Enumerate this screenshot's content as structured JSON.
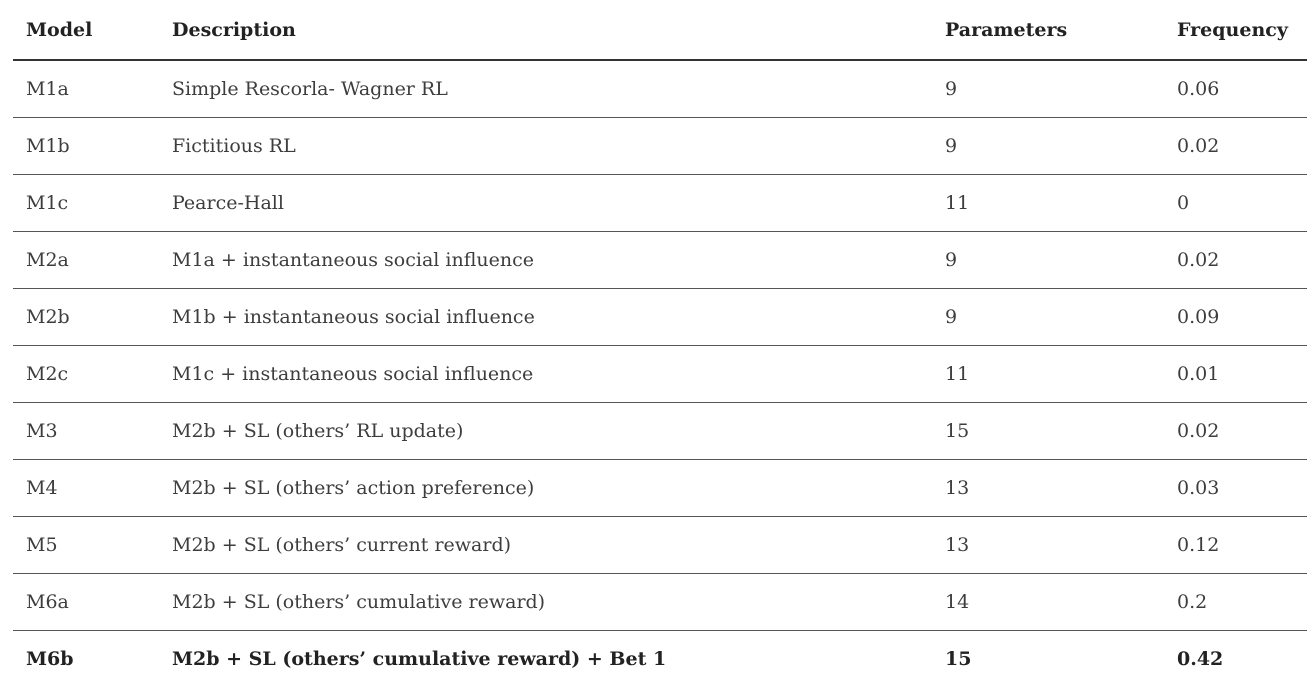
{
  "table": {
    "headers": {
      "model": "Model",
      "description": "Description",
      "parameters": "Parameters",
      "frequency": "Frequency"
    },
    "rows": [
      {
        "model": "M1a",
        "description": "Simple Rescorla- Wagner RL",
        "parameters": "9",
        "frequency": "0.06"
      },
      {
        "model": "M1b",
        "description": "Fictitious RL",
        "parameters": "9",
        "frequency": "0.02"
      },
      {
        "model": "M1c",
        "description": "Pearce-Hall",
        "parameters": "11",
        "frequency": "0"
      },
      {
        "model": "M2a",
        "description": "M1a + instantaneous social influence",
        "parameters": "9",
        "frequency": "0.02"
      },
      {
        "model": "M2b",
        "description": "M1b + instantaneous social influence",
        "parameters": "9",
        "frequency": "0.09"
      },
      {
        "model": "M2c",
        "description": "M1c + instantaneous social influence",
        "parameters": "11",
        "frequency": "0.01"
      },
      {
        "model": "M3",
        "description": "M2b + SL (others’ RL update)",
        "parameters": "15",
        "frequency": "0.02"
      },
      {
        "model": "M4",
        "description": "M2b + SL (others’ action preference)",
        "parameters": "13",
        "frequency": "0.03"
      },
      {
        "model": "M5",
        "description": "M2b + SL (others’ current reward)",
        "parameters": "13",
        "frequency": "0.12"
      },
      {
        "model": "M6a",
        "description": "M2b + SL (others’ cumulative reward)",
        "parameters": "14",
        "frequency": "0.2"
      },
      {
        "model": "M6b",
        "description": "M2b + SL (others’ cumulative reward) + Bet 1",
        "parameters": "15",
        "frequency": "0.42"
      }
    ]
  }
}
